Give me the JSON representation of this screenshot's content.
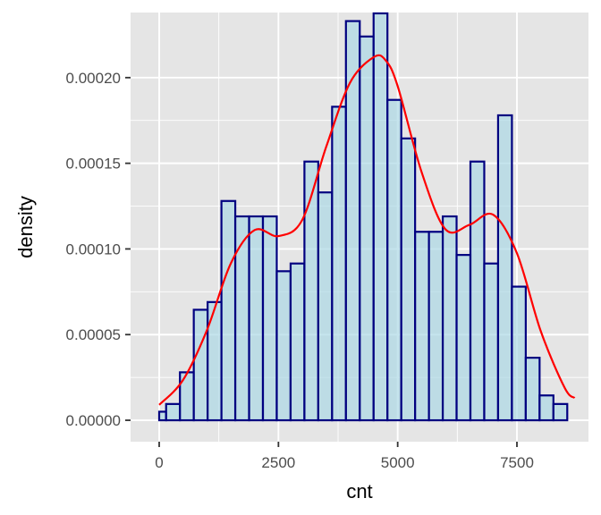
{
  "chart_data": {
    "type": "bar",
    "subtype": "histogram-with-density",
    "xlabel": "cnt",
    "ylabel": "density",
    "xlim": [
      -600,
      9000
    ],
    "ylim": [
      -1.25e-05,
      0.000238
    ],
    "x_ticks": [
      0,
      2500,
      5000,
      7500
    ],
    "x_tick_labels": [
      "0",
      "2500",
      "5000",
      "7500"
    ],
    "y_ticks": [
      0,
      5e-05,
      0.0001,
      0.00015,
      0.0002
    ],
    "y_tick_labels": [
      "0.00000",
      "0.00005",
      "0.00010",
      "0.00015",
      "0.00020"
    ],
    "bin_width": 290,
    "bins": [
      {
        "x0": 0,
        "x1": 145,
        "density": 5e-06
      },
      {
        "x0": 145,
        "x1": 435,
        "density": 9.5e-06
      },
      {
        "x0": 435,
        "x1": 725,
        "density": 2.8e-05
      },
      {
        "x0": 725,
        "x1": 1015,
        "density": 6.45e-05
      },
      {
        "x0": 1015,
        "x1": 1305,
        "density": 6.9e-05
      },
      {
        "x0": 1305,
        "x1": 1595,
        "density": 0.000128
      },
      {
        "x0": 1595,
        "x1": 1885,
        "density": 0.000119
      },
      {
        "x0": 1885,
        "x1": 2175,
        "density": 0.000119
      },
      {
        "x0": 2175,
        "x1": 2465,
        "density": 0.000119
      },
      {
        "x0": 2465,
        "x1": 2755,
        "density": 8.7e-05
      },
      {
        "x0": 2755,
        "x1": 3045,
        "density": 9.15e-05
      },
      {
        "x0": 3045,
        "x1": 3335,
        "density": 0.000151
      },
      {
        "x0": 3335,
        "x1": 3625,
        "density": 0.000133
      },
      {
        "x0": 3625,
        "x1": 3915,
        "density": 0.000183
      },
      {
        "x0": 3915,
        "x1": 4205,
        "density": 0.000233
      },
      {
        "x0": 4205,
        "x1": 4495,
        "density": 0.000224
      },
      {
        "x0": 4495,
        "x1": 4785,
        "density": 0.0002375
      },
      {
        "x0": 4785,
        "x1": 5075,
        "density": 0.000187
      },
      {
        "x0": 5075,
        "x1": 5365,
        "density": 0.0001645
      },
      {
        "x0": 5365,
        "x1": 5655,
        "density": 0.00011
      },
      {
        "x0": 5655,
        "x1": 5945,
        "density": 0.00011
      },
      {
        "x0": 5945,
        "x1": 6235,
        "density": 0.000119
      },
      {
        "x0": 6235,
        "x1": 6525,
        "density": 9.65e-05
      },
      {
        "x0": 6525,
        "x1": 6815,
        "density": 0.000151
      },
      {
        "x0": 6815,
        "x1": 7105,
        "density": 9.15e-05
      },
      {
        "x0": 7105,
        "x1": 7395,
        "density": 0.000178
      },
      {
        "x0": 7395,
        "x1": 7685,
        "density": 7.8e-05
      },
      {
        "x0": 7685,
        "x1": 7975,
        "density": 3.65e-05
      },
      {
        "x0": 7975,
        "x1": 8265,
        "density": 1.45e-05
      },
      {
        "x0": 8265,
        "x1": 8555,
        "density": 9.5e-06
      }
    ],
    "density_curve": {
      "x": [
        0,
        500,
        1000,
        1500,
        2000,
        2500,
        3000,
        3500,
        4000,
        4500,
        4750,
        5000,
        5500,
        6000,
        6500,
        7000,
        7500,
        8000,
        8500,
        8710
      ],
      "y": [
        9e-06,
        2.35e-05,
        5.25e-05,
        9.15e-05,
        0.000111,
        0.0001075,
        0.000117,
        0.0001595,
        0.000197,
        0.000212,
        0.00021,
        0.000195,
        0.000145,
        0.0001115,
        0.000114,
        0.00012,
        9.75e-05,
        5.2e-05,
        1.9e-05,
        1.3e-05
      ]
    },
    "grid": true,
    "legend": "none",
    "colors": {
      "panel_background": "#e5e5e5",
      "grid": "#ffffff",
      "bar_fill": "#add8e6",
      "bar_fill_opacity": 0.7,
      "bar_outline": "#000080",
      "density_line": "#ff0000",
      "tick_label": "#4d4d4d",
      "tick_mark": "#333333",
      "axis_title": "#000000"
    }
  }
}
